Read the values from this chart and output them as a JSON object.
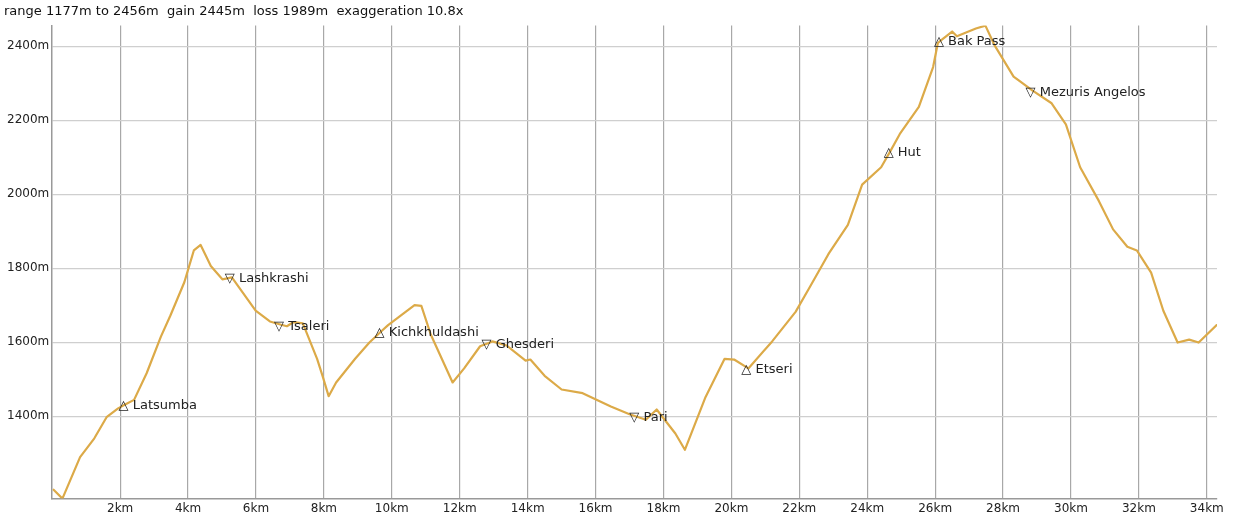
{
  "chart_data": {
    "type": "line",
    "title": "range 1177m to 2456m  gain 2445m  loss 1989m  exaggeration 10.8x",
    "x": [
      0.04,
      0.3,
      0.82,
      1.24,
      1.6,
      1.94,
      2.16,
      2.41,
      2.78,
      3.2,
      3.48,
      3.89,
      4.17,
      4.37,
      4.67,
      5.01,
      5.29,
      5.99,
      6.41,
      6.74,
      6.91,
      7.1,
      7.38,
      7.8,
      7.96,
      8.14,
      8.36,
      8.92,
      9.34,
      9.7,
      9.89,
      10.67,
      10.87,
      11.15,
      11.79,
      12.13,
      12.6,
      12.85,
      12.96,
      13.38,
      13.94,
      14.08,
      14.5,
      15.0,
      15.62,
      16.45,
      17.0,
      17.2,
      17.48,
      17.8,
      18.35,
      18.63,
      19.24,
      19.8,
      20.08,
      20.5,
      21.2,
      21.89,
      22.31,
      22.87,
      23.43,
      23.85,
      24.41,
      24.69,
      24.96,
      25.52,
      25.94,
      26.08,
      26.17,
      26.5,
      26.64,
      27.2,
      27.48,
      27.76,
      28.31,
      28.87,
      29.43,
      29.85,
      30.27,
      30.82,
      31.24,
      31.66,
      31.94,
      32.36,
      32.72,
      33.14,
      33.48,
      33.76,
      34.29
    ],
    "series": [
      {
        "color": "#dcaa48",
        "values": [
          1201,
          1177,
          1289,
          1340,
          1397,
          1421,
          1432,
          1444,
          1516,
          1615,
          1672,
          1762,
          1848,
          1863,
          1806,
          1770,
          1775,
          1685,
          1656,
          1647,
          1643,
          1654,
          1651,
          1555,
          1509,
          1454,
          1491,
          1555,
          1599,
          1630,
          1646,
          1700,
          1698,
          1620,
          1491,
          1529,
          1589,
          1598,
          1602,
          1591,
          1550,
          1553,
          1509,
          1472,
          1462,
          1426,
          1405,
          1399,
          1390,
          1418,
          1353,
          1309,
          1452,
          1555,
          1553,
          1529,
          1602,
          1682,
          1749,
          1840,
          1917,
          2026,
          2073,
          2118,
          2163,
          2236,
          2344,
          2409,
          2416,
          2440,
          2427,
          2448,
          2456,
          2401,
          2318,
          2280,
          2246,
          2189,
          2073,
          1982,
          1905,
          1858,
          1848,
          1788,
          1685,
          1599,
          1607,
          1599,
          1646
        ]
      }
    ],
    "xlim": [
      0,
      34.3
    ],
    "xticks": [
      {
        "value": 2,
        "label": "2km"
      },
      {
        "value": 4,
        "label": "4km"
      },
      {
        "value": 6,
        "label": "6km"
      },
      {
        "value": 8,
        "label": "8km"
      },
      {
        "value": 10,
        "label": "10km"
      },
      {
        "value": 12,
        "label": "12km"
      },
      {
        "value": 14,
        "label": "14km"
      },
      {
        "value": 16,
        "label": "16km"
      },
      {
        "value": 18,
        "label": "18km"
      },
      {
        "value": 20,
        "label": "20km"
      },
      {
        "value": 22,
        "label": "22km"
      },
      {
        "value": 24,
        "label": "24km"
      },
      {
        "value": 26,
        "label": "26km"
      },
      {
        "value": 28,
        "label": "28km"
      },
      {
        "value": 30,
        "label": "30km"
      },
      {
        "value": 32,
        "label": "32km"
      },
      {
        "value": 34,
        "label": "34km"
      }
    ],
    "ylim": [
      1177,
      2456
    ],
    "yticks": [
      {
        "value": 1400,
        "label": "1400m"
      },
      {
        "value": 1600,
        "label": "1600m"
      },
      {
        "value": 1800,
        "label": "1800m"
      },
      {
        "value": 2000,
        "label": "2000m"
      },
      {
        "value": 2200,
        "label": "2200m"
      },
      {
        "value": 2400,
        "label": "2400m"
      }
    ],
    "grid": true,
    "legend": false,
    "marker": "none",
    "line_style": "solid",
    "annotations": [
      {
        "text": "△ Latsumba",
        "x": 2.16,
        "y": 1432
      },
      {
        "text": "▽ Lashkrashi",
        "x": 5.29,
        "y": 1775
      },
      {
        "text": "▽ Tsaleri",
        "x": 6.74,
        "y": 1647
      },
      {
        "text": "△ Kichkhuldashi",
        "x": 9.7,
        "y": 1630
      },
      {
        "text": "▽ Ghesderi",
        "x": 12.85,
        "y": 1598
      },
      {
        "text": "▽ Pari",
        "x": 17.2,
        "y": 1399
      },
      {
        "text": "△ Etseri",
        "x": 20.5,
        "y": 1529
      },
      {
        "text": "△ Hut",
        "x": 24.69,
        "y": 2118
      },
      {
        "text": "△ Bak Pass",
        "x": 26.17,
        "y": 2416
      },
      {
        "text": "▽ Mezuris Angelos",
        "x": 28.87,
        "y": 2280
      }
    ]
  }
}
